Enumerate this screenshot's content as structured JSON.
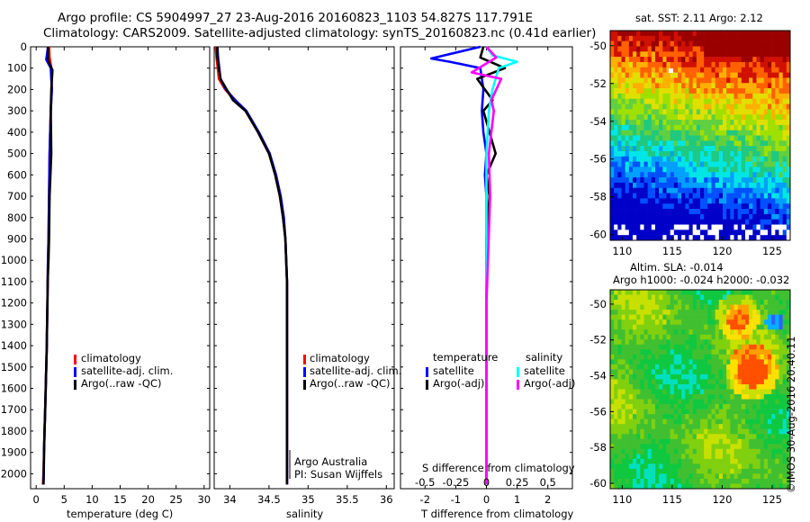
{
  "header": {
    "line1": "Argo profile: CS 5904997_27 23-Aug-2016 20160823_1103 54.827S 117.791E",
    "line2": "Climatology: CARS2009. Satellite-adjusted climatology: synTS_20160823.nc (0.41d earlier)"
  },
  "colors": {
    "climatology": "#ff0000",
    "satellite": "#0000ff",
    "argo": "#000000",
    "sat_salinity": "#00ffff",
    "argo_salinity": "#ff00ff"
  },
  "depth_ticks": [
    "0",
    "100",
    "200",
    "300",
    "400",
    "500",
    "600",
    "700",
    "800",
    "900",
    "1000",
    "1100",
    "1200",
    "1300",
    "1400",
    "1500",
    "1600",
    "1700",
    "1800",
    "1900",
    "2000"
  ],
  "panel_temp": {
    "xlabel": "temperature (deg C)",
    "xticks": [
      "0",
      "5",
      "10",
      "15",
      "20",
      "25",
      "30"
    ],
    "legend": [
      "climatology",
      "satellite-adj. clim.",
      "Argo(..raw -QC)"
    ]
  },
  "panel_sal": {
    "xlabel": "salinity",
    "xticks": [
      "34",
      "34.5",
      "35",
      "35.5",
      "36"
    ],
    "legend": [
      "climatology",
      "satellite-adj. clim.",
      "Argo(..raw -QC)"
    ],
    "note1": "Argo Australia",
    "note2": "PI: Susan Wijffels"
  },
  "panel_diff": {
    "xlabel": "T difference from climatology",
    "xlabel_top": "S difference from climatology",
    "xticks_bottom": [
      "-2",
      "-1",
      "0",
      "1",
      "2"
    ],
    "xticks_top": [
      "-0.5",
      "-0.25",
      "0",
      "0.25",
      "0.5"
    ],
    "legend_head_t": "temperature",
    "legend_head_s": "salinity",
    "legend_t": [
      "satellite",
      "Argo(-adj)"
    ],
    "legend_s": [
      "satellite",
      "Argo(-adj)"
    ]
  },
  "map_sst": {
    "title": "sat. SST: 2.11  Argo: 2.12",
    "lon_ticks": [
      "110",
      "115",
      "120",
      "125"
    ],
    "lat_ticks": [
      "-50",
      "-52",
      "-54",
      "-56",
      "-58",
      "-60"
    ]
  },
  "map_sla": {
    "title1": "Altim. SLA: -0.014",
    "title2": "Argo h1000: -0.024 h2000: -0.032",
    "lon_ticks": [
      "110",
      "115",
      "120",
      "125"
    ],
    "lat_ticks": [
      "-50",
      "-52",
      "-54",
      "-56",
      "-58",
      "-60"
    ]
  },
  "credit": "©IMOS 30-Aug-2016 20:40:11",
  "chart_data": [
    {
      "type": "line",
      "title": "temperature",
      "xlabel": "temperature (deg C)",
      "ylabel": "depth",
      "xlim": [
        -1,
        31
      ],
      "ylim": [
        2070,
        0
      ],
      "series": [
        {
          "name": "climatology",
          "x": [
            2.3,
            2.4,
            2.7,
            2.8,
            2.6,
            2.4,
            2.3,
            2.2,
            2.1,
            2.05,
            2.0,
            1.95,
            1.9,
            1.8,
            1.7,
            1.6,
            1.5,
            1.4,
            1.3,
            1.2
          ],
          "y": [
            0,
            50,
            100,
            200,
            300,
            500,
            700,
            900,
            1000,
            1100,
            1200,
            1300,
            1400,
            1500,
            1600,
            1700,
            1800,
            1900,
            2000,
            2050
          ]
        },
        {
          "name": "satellite-adj. clim.",
          "x": [
            2.1,
            1.8,
            2.6,
            2.8,
            2.6,
            2.4,
            2.3,
            2.2,
            2.1,
            2.05,
            2.0,
            1.95,
            1.9,
            1.8,
            1.7,
            1.6,
            1.5,
            1.4,
            1.35,
            1.3
          ],
          "y": [
            0,
            60,
            100,
            200,
            300,
            500,
            700,
            900,
            1000,
            1100,
            1200,
            1300,
            1400,
            1500,
            1600,
            1700,
            1800,
            1900,
            2000,
            2050
          ]
        },
        {
          "name": "Argo(..raw -QC)",
          "x": [
            2.1,
            2.1,
            2.9,
            2.7,
            2.6,
            2.7,
            2.4,
            2.3,
            2.2,
            2.05,
            2.0,
            1.95,
            1.9,
            1.8,
            1.7,
            1.6,
            1.5,
            1.4,
            1.35,
            1.3
          ],
          "y": [
            0,
            60,
            110,
            200,
            300,
            500,
            700,
            900,
            1000,
            1100,
            1200,
            1300,
            1400,
            1500,
            1600,
            1700,
            1800,
            1900,
            2000,
            2050
          ]
        }
      ]
    },
    {
      "type": "line",
      "title": "salinity",
      "xlabel": "salinity",
      "ylabel": "depth",
      "xlim": [
        33.8,
        36.1
      ],
      "ylim": [
        2070,
        0
      ],
      "series": [
        {
          "name": "climatology",
          "x": [
            33.82,
            33.83,
            33.86,
            33.94,
            34.06,
            34.2,
            34.36,
            34.5,
            34.58,
            34.64,
            34.68,
            34.71,
            34.72,
            34.73,
            34.73,
            34.73,
            34.73,
            34.73,
            34.73,
            34.73
          ],
          "y": [
            0,
            50,
            150,
            200,
            250,
            300,
            400,
            500,
            600,
            700,
            800,
            900,
            1000,
            1100,
            1200,
            1400,
            1600,
            1800,
            2000,
            2050
          ]
        },
        {
          "name": "satellite-adj. clim.",
          "x": [
            33.84,
            33.85,
            33.88,
            33.95,
            34.07,
            34.21,
            34.37,
            34.51,
            34.59,
            34.65,
            34.69,
            34.71,
            34.72,
            34.73,
            34.73,
            34.73,
            34.73,
            34.73,
            34.73,
            34.73
          ],
          "y": [
            0,
            50,
            150,
            200,
            250,
            300,
            400,
            500,
            600,
            700,
            800,
            900,
            1000,
            1100,
            1200,
            1400,
            1600,
            1800,
            2000,
            2050
          ]
        },
        {
          "name": "Argo(..raw -QC)",
          "x": [
            33.84,
            33.84,
            33.88,
            33.96,
            34.04,
            34.2,
            34.36,
            34.5,
            34.58,
            34.64,
            34.68,
            34.71,
            34.72,
            34.73,
            34.73,
            34.73,
            34.73,
            34.73,
            34.73,
            34.73
          ],
          "y": [
            0,
            50,
            150,
            200,
            250,
            300,
            400,
            500,
            600,
            700,
            800,
            900,
            1000,
            1100,
            1200,
            1400,
            1600,
            1800,
            2000,
            2050
          ]
        }
      ]
    },
    {
      "type": "line",
      "title": "difference from climatology",
      "xlabel": "T difference from climatology",
      "x2label": "S difference from climatology",
      "ylabel": "depth",
      "xlim": [
        -2.8,
        2.8
      ],
      "x2lim": [
        -0.7,
        0.7
      ],
      "ylim": [
        2070,
        0
      ],
      "series": [
        {
          "name": "satellite (temperature)",
          "x": [
            -0.2,
            -1.8,
            -1.2,
            -0.2,
            -0.1,
            -0.15,
            -0.1,
            0,
            -0.05,
            0,
            0,
            0,
            0,
            0
          ],
          "y": [
            0,
            55,
            70,
            100,
            200,
            300,
            400,
            500,
            600,
            700,
            900,
            1200,
            1600,
            2050
          ]
        },
        {
          "name": "Argo(-adj) (temperature)",
          "x": [
            -0.1,
            -0.2,
            0.6,
            -0.3,
            0.2,
            -0.1,
            0.3,
            0,
            0.1,
            0,
            0,
            0,
            0
          ],
          "y": [
            0,
            50,
            100,
            150,
            250,
            300,
            500,
            600,
            700,
            900,
            1200,
            1600,
            2050
          ]
        },
        {
          "name": "satellite (salinity)",
          "x": [
            0,
            0.05,
            0.25,
            0.1,
            0.05,
            0.02,
            0,
            0,
            0,
            0
          ],
          "y": [
            0,
            40,
            70,
            100,
            200,
            300,
            500,
            900,
            1500,
            2050
          ]
        },
        {
          "name": "Argo(-adj) (salinity)",
          "x": [
            0,
            0.08,
            -0.12,
            0.12,
            0.04,
            0.06,
            0.02,
            0.03,
            0,
            0
          ],
          "y": [
            0,
            50,
            120,
            150,
            250,
            300,
            500,
            700,
            1200,
            2050
          ]
        }
      ]
    },
    {
      "type": "heatmap",
      "title": "sat. SST: 2.11  Argo: 2.12",
      "xlim": [
        108.8,
        126.8
      ],
      "ylim": [
        -60.3,
        -49.2
      ],
      "xticks": [
        110,
        115,
        120,
        125
      ],
      "yticks": [
        -50,
        -52,
        -54,
        -56,
        -58,
        -60
      ]
    },
    {
      "type": "heatmap",
      "title": "Altim. SLA: -0.014",
      "xlim": [
        108.8,
        126.8
      ],
      "ylim": [
        -60.3,
        -49.2
      ],
      "xticks": [
        110,
        115,
        120,
        125
      ],
      "yticks": [
        -50,
        -52,
        -54,
        -56,
        -58,
        -60
      ]
    }
  ]
}
